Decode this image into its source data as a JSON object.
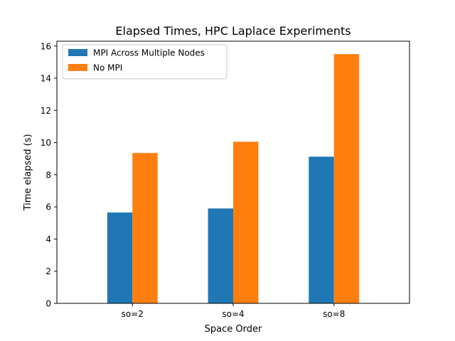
{
  "chart_data": {
    "type": "bar",
    "title": "Elapsed Times, HPC Laplace Experiments",
    "xlabel": "Space Order",
    "ylabel": "Time elapsed (s)",
    "categories": [
      "so=2",
      "so=4",
      "so=8"
    ],
    "series": [
      {
        "name": "MPI Across Multiple Nodes",
        "color": "#1f77b4",
        "values": [
          5.65,
          5.9,
          9.12
        ]
      },
      {
        "name": "No MPI",
        "color": "#ff7f0e",
        "values": [
          9.35,
          10.05,
          15.5
        ]
      }
    ],
    "ylim": [
      0,
      16.3
    ],
    "yticks": [
      0,
      2,
      4,
      6,
      8,
      10,
      12,
      14,
      16
    ],
    "grid": false,
    "legend_position": "top-left"
  }
}
